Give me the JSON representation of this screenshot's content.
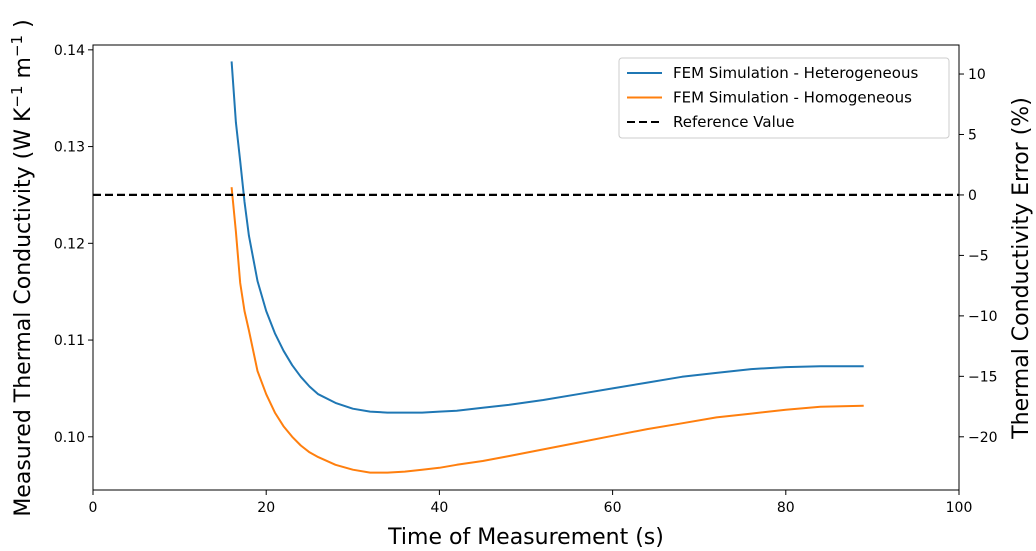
{
  "chart_data": {
    "type": "line",
    "xlabel": "Time of Measurement (s)",
    "ylabel_left": "Measured Thermal Conductivity (W K",
    "ylabel_left_exp1": "−1",
    "ylabel_left_mid": " m",
    "ylabel_left_exp2": "−1",
    "ylabel_left_end": " )",
    "ylabel_right": "Thermal Conductivity Error (%)",
    "xlim": [
      0,
      100
    ],
    "ylim_left": [
      0.0945,
      0.1405
    ],
    "ylim_right": [
      -24.4,
      12.4
    ],
    "x_ticks": [
      0,
      20,
      40,
      60,
      80,
      100
    ],
    "x_tick_labels": [
      "0",
      "20",
      "40",
      "60",
      "80",
      "100"
    ],
    "y_left_ticks": [
      0.1,
      0.11,
      0.12,
      0.13,
      0.14
    ],
    "y_left_tick_labels": [
      "0.10",
      "0.11",
      "0.12",
      "0.13",
      "0.14"
    ],
    "y_right_ticks": [
      -20,
      -15,
      -10,
      -5,
      0,
      5,
      10
    ],
    "y_right_tick_labels": [
      "−20",
      "−15",
      "−10",
      "−5",
      "0",
      "5",
      "10"
    ],
    "grid": false,
    "legend_position": "top-right",
    "series": [
      {
        "name": "FEM Simulation - Heterogeneous",
        "color": "#1f77b4",
        "style": "solid",
        "x": [
          16,
          16.5,
          17,
          17.5,
          18,
          19,
          20,
          21,
          22,
          23,
          24,
          25,
          26,
          28,
          30,
          32,
          34,
          36,
          38,
          40,
          42,
          45,
          48,
          52,
          56,
          60,
          64,
          68,
          72,
          76,
          80,
          84,
          89
        ],
        "y": [
          0.1388,
          0.1325,
          0.1285,
          0.1243,
          0.1208,
          0.1161,
          0.113,
          0.1107,
          0.1089,
          0.1074,
          0.1062,
          0.1052,
          0.1044,
          0.1035,
          0.1029,
          0.1026,
          0.1025,
          0.1025,
          0.1025,
          0.1026,
          0.1027,
          0.103,
          0.1033,
          0.1038,
          0.1044,
          0.105,
          0.1056,
          0.1062,
          0.1066,
          0.107,
          0.1072,
          0.1073,
          0.1073
        ]
      },
      {
        "name": "FEM Simulation - Homogeneous",
        "color": "#ff7f0e",
        "style": "solid",
        "x": [
          16,
          16.5,
          17,
          17.5,
          18,
          19,
          20,
          21,
          22,
          23,
          24,
          25,
          26,
          28,
          30,
          32,
          34,
          36,
          38,
          40,
          42,
          45,
          48,
          52,
          56,
          60,
          64,
          68,
          72,
          76,
          80,
          84,
          89
        ],
        "y": [
          0.1258,
          0.1212,
          0.1159,
          0.113,
          0.111,
          0.1068,
          0.1044,
          0.1025,
          0.1011,
          0.1,
          0.0991,
          0.0984,
          0.0979,
          0.0971,
          0.0966,
          0.0963,
          0.0963,
          0.0964,
          0.0966,
          0.0968,
          0.0971,
          0.0975,
          0.098,
          0.0987,
          0.0994,
          0.1001,
          0.1008,
          0.1014,
          0.102,
          0.1024,
          0.1028,
          0.1031,
          0.1032
        ]
      },
      {
        "name": "Reference Value",
        "color": "#000000",
        "style": "dashed",
        "x": [
          0,
          100
        ],
        "y": [
          0.125,
          0.125
        ]
      }
    ]
  }
}
